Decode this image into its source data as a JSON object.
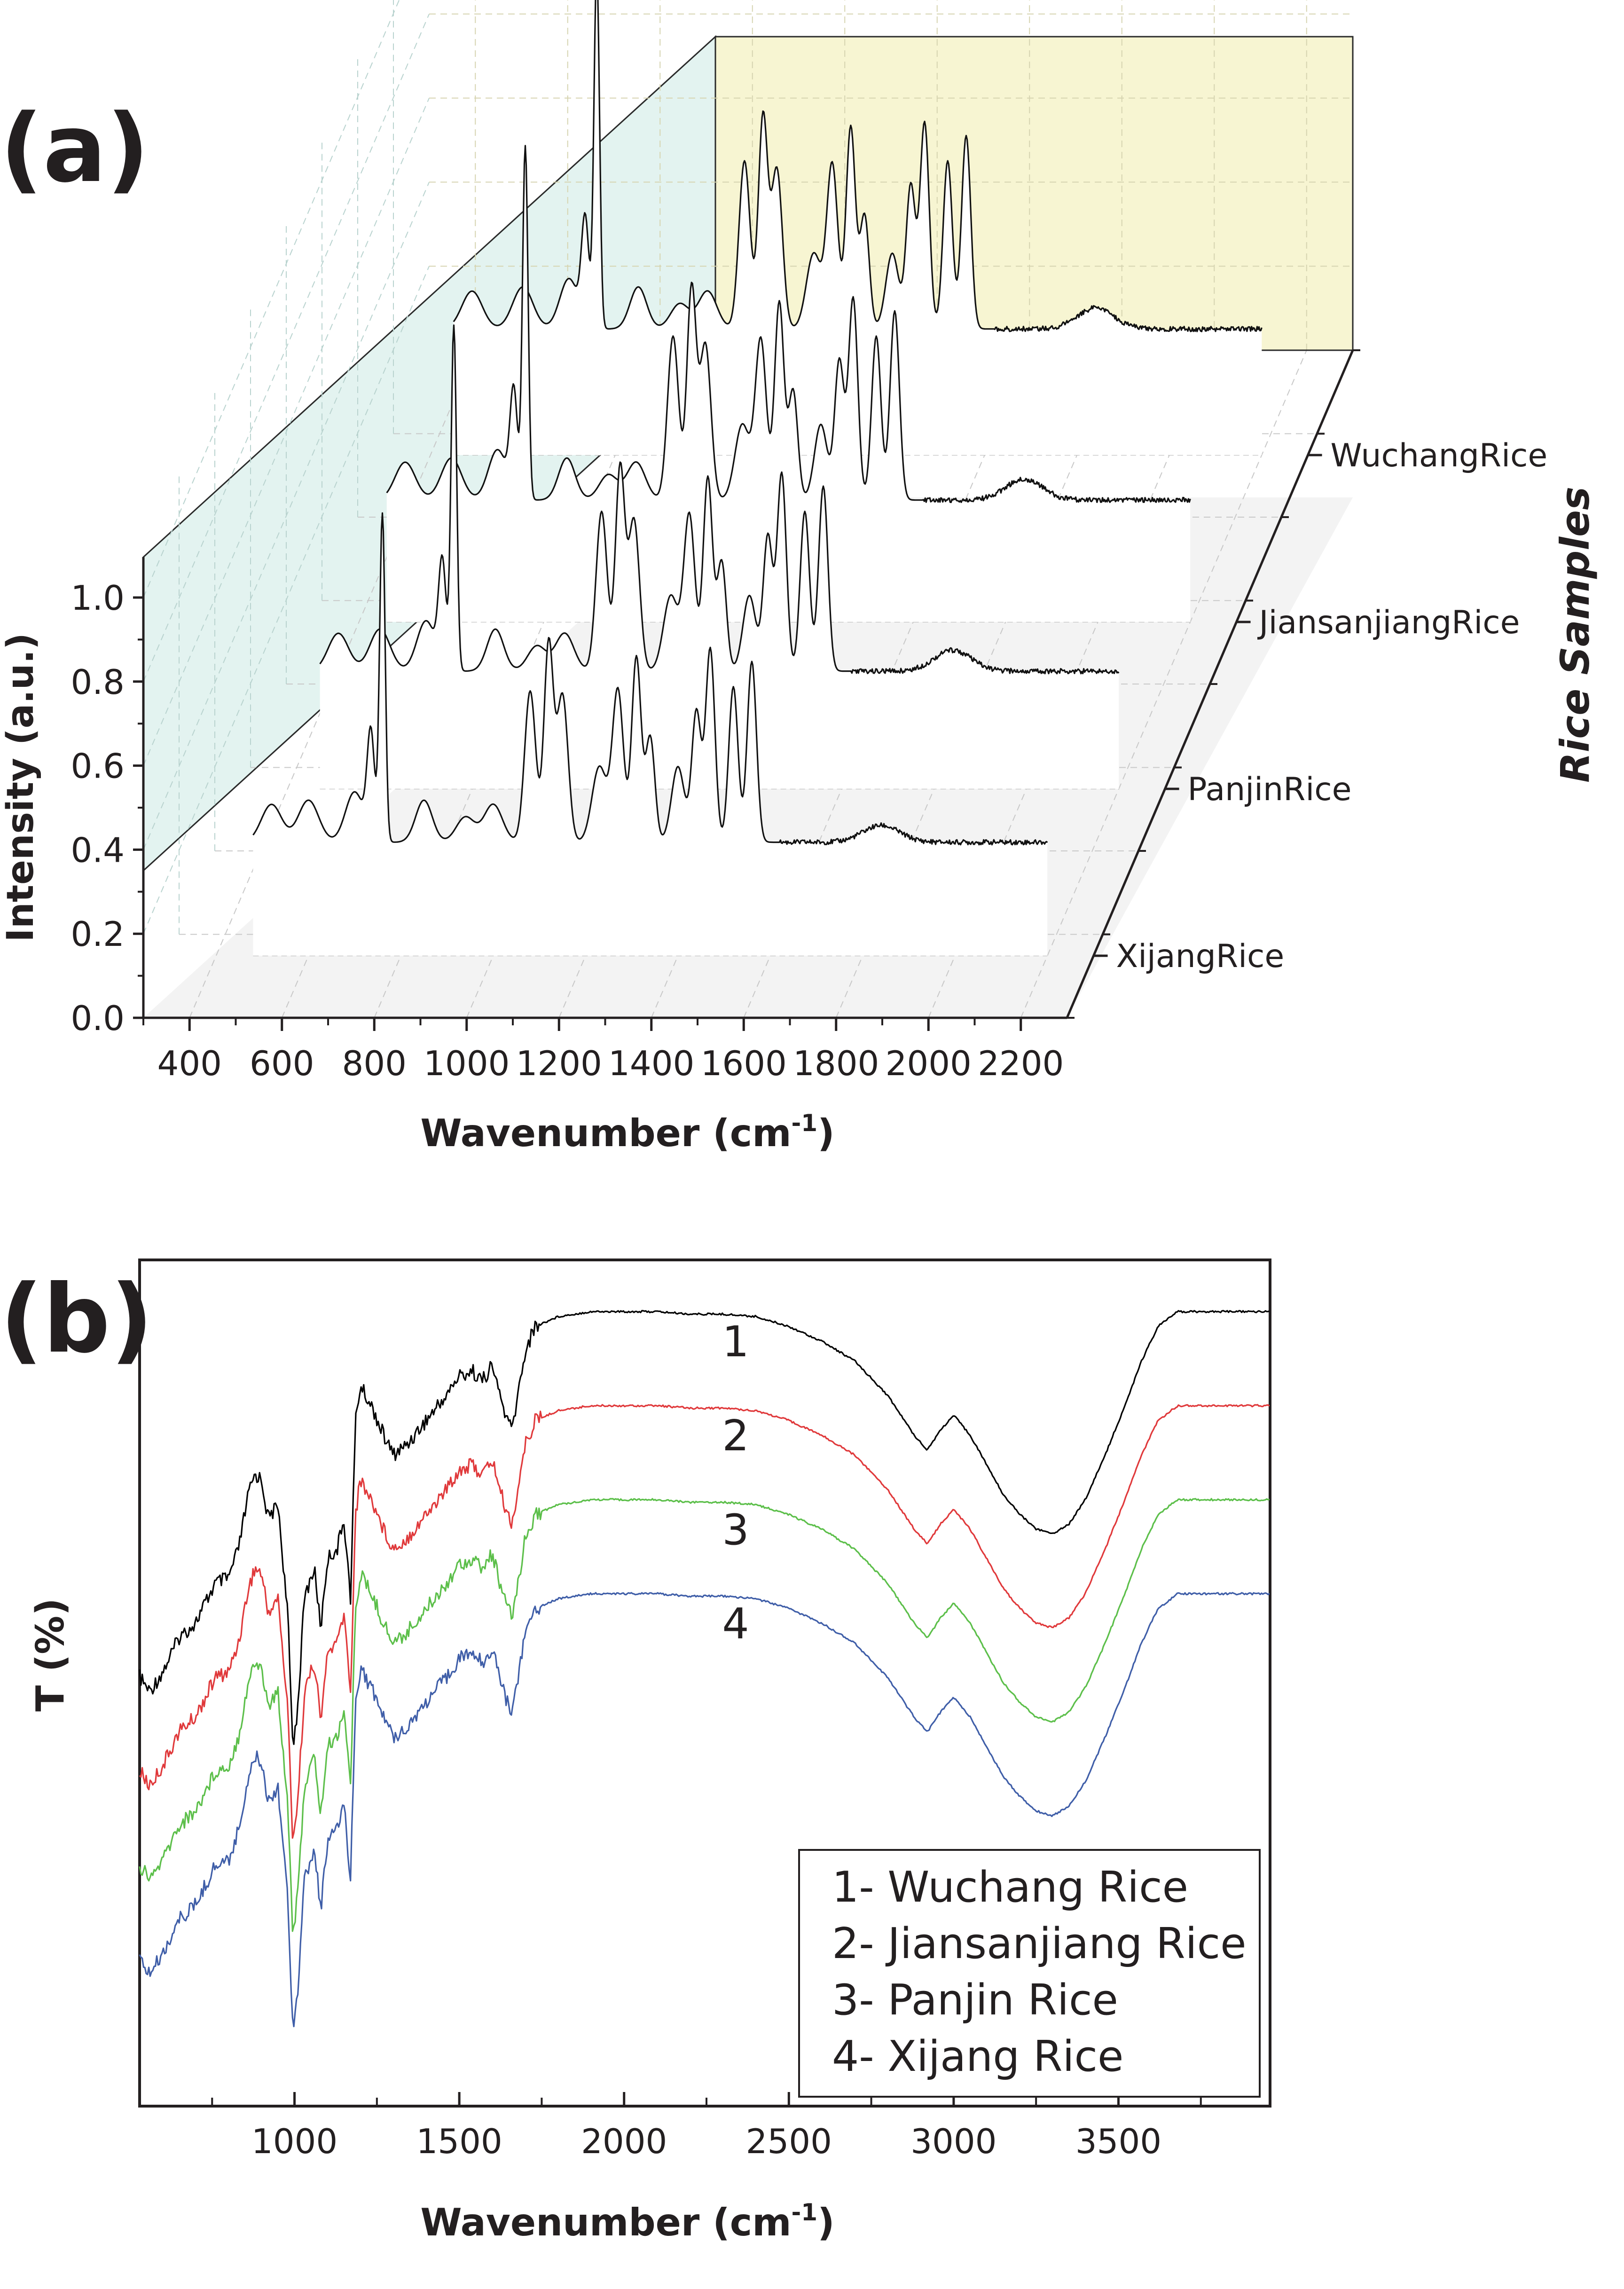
{
  "chart_data": [
    {
      "panel_label": "(a)",
      "type": "line",
      "subtype": "3d-waterfall",
      "xlabel": "Wavenumber (cm",
      "xlabel_sup": "-1",
      "xlabel_close": ")",
      "ylabel": "Intensity (a.u.)",
      "zlabel": "Rice Samples",
      "xlim": [
        300,
        2300
      ],
      "ylim": [
        0.0,
        1.1
      ],
      "xticks": [
        400,
        600,
        800,
        1000,
        1200,
        1400,
        1600,
        1800,
        2000,
        2200
      ],
      "xtick_labels": [
        "400",
        "600",
        "800",
        "1000",
        "1200",
        "1400",
        "1600",
        "1800",
        "2000",
        "2200"
      ],
      "yticks": [
        0.0,
        0.2,
        0.4,
        0.6,
        0.8,
        1.0
      ],
      "ytick_labels": [
        "0.0",
        "0.2",
        "0.4",
        "0.6",
        "0.8",
        "1.0"
      ],
      "wall_colors": {
        "side": "#e3f3f0",
        "back": "#f7f5d2",
        "floor": "#f3f3f3"
      },
      "series": [
        {
          "name": "XijangRice",
          "baseline": 0.27,
          "start": 480,
          "peaks": [
            [
              520,
              0.09,
              22
            ],
            [
              600,
              0.1,
              22
            ],
            [
              700,
              0.12,
              20
            ],
            [
              735,
              0.25,
              8
            ],
            [
              760,
              0.78,
              6
            ],
            [
              850,
              0.1,
              18
            ],
            [
              940,
              0.06,
              20
            ],
            [
              1000,
              0.09,
              20
            ],
            [
              1080,
              0.36,
              12
            ],
            [
              1120,
              0.47,
              10
            ],
            [
              1150,
              0.35,
              12
            ],
            [
              1230,
              0.18,
              16
            ],
            [
              1270,
              0.36,
              12
            ],
            [
              1310,
              0.44,
              10
            ],
            [
              1340,
              0.25,
              10
            ],
            [
              1400,
              0.18,
              14
            ],
            [
              1440,
              0.31,
              10
            ],
            [
              1470,
              0.46,
              10
            ],
            [
              1520,
              0.37,
              10
            ],
            [
              1560,
              0.43,
              10
            ],
            [
              1840,
              0.04,
              40
            ]
          ]
        },
        {
          "name": "PanjinRice",
          "baseline": 0.28,
          "start": 470,
          "peaks": [
            [
              510,
              0.09,
              22
            ],
            [
              600,
              0.1,
              22
            ],
            [
              700,
              0.12,
              20
            ],
            [
              735,
              0.25,
              8
            ],
            [
              760,
              0.82,
              6
            ],
            [
              850,
              0.1,
              18
            ],
            [
              940,
              0.06,
              20
            ],
            [
              1000,
              0.09,
              20
            ],
            [
              1080,
              0.38,
              12
            ],
            [
              1120,
              0.48,
              10
            ],
            [
              1150,
              0.36,
              12
            ],
            [
              1230,
              0.18,
              16
            ],
            [
              1270,
              0.37,
              12
            ],
            [
              1310,
              0.46,
              10
            ],
            [
              1340,
              0.26,
              10
            ],
            [
              1400,
              0.18,
              14
            ],
            [
              1440,
              0.32,
              10
            ],
            [
              1470,
              0.47,
              10
            ],
            [
              1520,
              0.38,
              10
            ],
            [
              1560,
              0.44,
              10
            ],
            [
              1840,
              0.05,
              40
            ]
          ]
        },
        {
          "name": "JiansanjiangRice",
          "baseline": 0.29,
          "start": 460,
          "peaks": [
            [
              500,
              0.09,
              22
            ],
            [
              600,
              0.1,
              22
            ],
            [
              700,
              0.12,
              20
            ],
            [
              735,
              0.25,
              8
            ],
            [
              760,
              0.84,
              6
            ],
            [
              850,
              0.1,
              18
            ],
            [
              940,
              0.06,
              20
            ],
            [
              1000,
              0.09,
              20
            ],
            [
              1080,
              0.39,
              12
            ],
            [
              1120,
              0.5,
              10
            ],
            [
              1150,
              0.37,
              12
            ],
            [
              1230,
              0.18,
              16
            ],
            [
              1270,
              0.38,
              12
            ],
            [
              1310,
              0.47,
              10
            ],
            [
              1340,
              0.26,
              10
            ],
            [
              1400,
              0.18,
              14
            ],
            [
              1440,
              0.33,
              10
            ],
            [
              1470,
              0.48,
              10
            ],
            [
              1520,
              0.39,
              10
            ],
            [
              1560,
              0.45,
              10
            ],
            [
              1840,
              0.05,
              40
            ]
          ]
        },
        {
          "name": "WuchangRice",
          "baseline": 0.3,
          "start": 450,
          "peaks": [
            [
              490,
              0.09,
              22
            ],
            [
              600,
              0.1,
              22
            ],
            [
              700,
              0.12,
              20
            ],
            [
              735,
              0.25,
              8
            ],
            [
              760,
              0.86,
              6
            ],
            [
              850,
              0.1,
              18
            ],
            [
              940,
              0.06,
              20
            ],
            [
              1000,
              0.09,
              20
            ],
            [
              1080,
              0.4,
              12
            ],
            [
              1120,
              0.5,
              10
            ],
            [
              1150,
              0.38,
              12
            ],
            [
              1230,
              0.18,
              16
            ],
            [
              1270,
              0.39,
              12
            ],
            [
              1310,
              0.48,
              10
            ],
            [
              1340,
              0.27,
              10
            ],
            [
              1400,
              0.18,
              14
            ],
            [
              1440,
              0.34,
              10
            ],
            [
              1470,
              0.49,
              10
            ],
            [
              1520,
              0.4,
              10
            ],
            [
              1560,
              0.46,
              10
            ],
            [
              1840,
              0.05,
              40
            ]
          ]
        }
      ]
    },
    {
      "panel_label": "(b)",
      "type": "line",
      "xlabel": "Wavenumber (cm",
      "xlabel_sup": "-1",
      "xlabel_close": ")",
      "ylabel": "T (%)",
      "xlim": [
        530,
        3960
      ],
      "xticks": [
        1000,
        1500,
        2000,
        2500,
        3000,
        3500
      ],
      "xtick_labels": [
        "1000",
        "1500",
        "2000",
        "2500",
        "3000",
        "3500"
      ],
      "legend_position": "bottom-right",
      "series": [
        {
          "name": "1",
          "legend": "1- Wuchang Rice",
          "color": "#000000",
          "offset": 0
        },
        {
          "name": "2",
          "legend": "2- Jiansanjiang Rice",
          "color": "#e0393b",
          "offset": 1
        },
        {
          "name": "3",
          "legend": "3- Panjin Rice",
          "color": "#5cbf4a",
          "offset": 2
        },
        {
          "name": "4",
          "legend": "4- Xijang Rice",
          "color": "#3f5ea8",
          "offset": 3
        }
      ],
      "profile": [
        [
          530,
          0.74
        ],
        [
          560,
          0.77
        ],
        [
          600,
          0.73
        ],
        [
          650,
          0.66
        ],
        [
          700,
          0.63
        ],
        [
          760,
          0.55
        ],
        [
          800,
          0.54
        ],
        [
          830,
          0.48
        ],
        [
          860,
          0.37
        ],
        [
          880,
          0.33
        ],
        [
          900,
          0.34
        ],
        [
          920,
          0.42
        ],
        [
          950,
          0.39
        ],
        [
          980,
          0.62
        ],
        [
          995,
          0.88
        ],
        [
          1010,
          0.8
        ],
        [
          1030,
          0.58
        ],
        [
          1060,
          0.52
        ],
        [
          1080,
          0.64
        ],
        [
          1100,
          0.5
        ],
        [
          1130,
          0.48
        ],
        [
          1150,
          0.42
        ],
        [
          1170,
          0.58
        ],
        [
          1185,
          0.22
        ],
        [
          1200,
          0.15
        ],
        [
          1240,
          0.2
        ],
        [
          1270,
          0.25
        ],
        [
          1300,
          0.29
        ],
        [
          1340,
          0.27
        ],
        [
          1400,
          0.22
        ],
        [
          1460,
          0.17
        ],
        [
          1500,
          0.13
        ],
        [
          1540,
          0.12
        ],
        [
          1570,
          0.14
        ],
        [
          1600,
          0.11
        ],
        [
          1640,
          0.21
        ],
        [
          1660,
          0.24
        ],
        [
          1680,
          0.16
        ],
        [
          1700,
          0.08
        ],
        [
          1730,
          0.03
        ],
        [
          1800,
          0.01
        ],
        [
          1900,
          0.0
        ],
        [
          2000,
          0.0
        ],
        [
          2100,
          0.0
        ],
        [
          2200,
          0.005
        ],
        [
          2300,
          0.005
        ],
        [
          2400,
          0.01
        ],
        [
          2500,
          0.03
        ],
        [
          2600,
          0.06
        ],
        [
          2700,
          0.1
        ],
        [
          2800,
          0.17
        ],
        [
          2880,
          0.25
        ],
        [
          2920,
          0.28
        ],
        [
          2960,
          0.24
        ],
        [
          3000,
          0.21
        ],
        [
          3050,
          0.25
        ],
        [
          3100,
          0.31
        ],
        [
          3150,
          0.37
        ],
        [
          3200,
          0.41
        ],
        [
          3250,
          0.44
        ],
        [
          3300,
          0.45
        ],
        [
          3350,
          0.43
        ],
        [
          3400,
          0.38
        ],
        [
          3460,
          0.29
        ],
        [
          3520,
          0.19
        ],
        [
          3570,
          0.1
        ],
        [
          3620,
          0.03
        ],
        [
          3680,
          0.0
        ],
        [
          3800,
          0.0
        ],
        [
          3960,
          0.0
        ]
      ]
    }
  ]
}
